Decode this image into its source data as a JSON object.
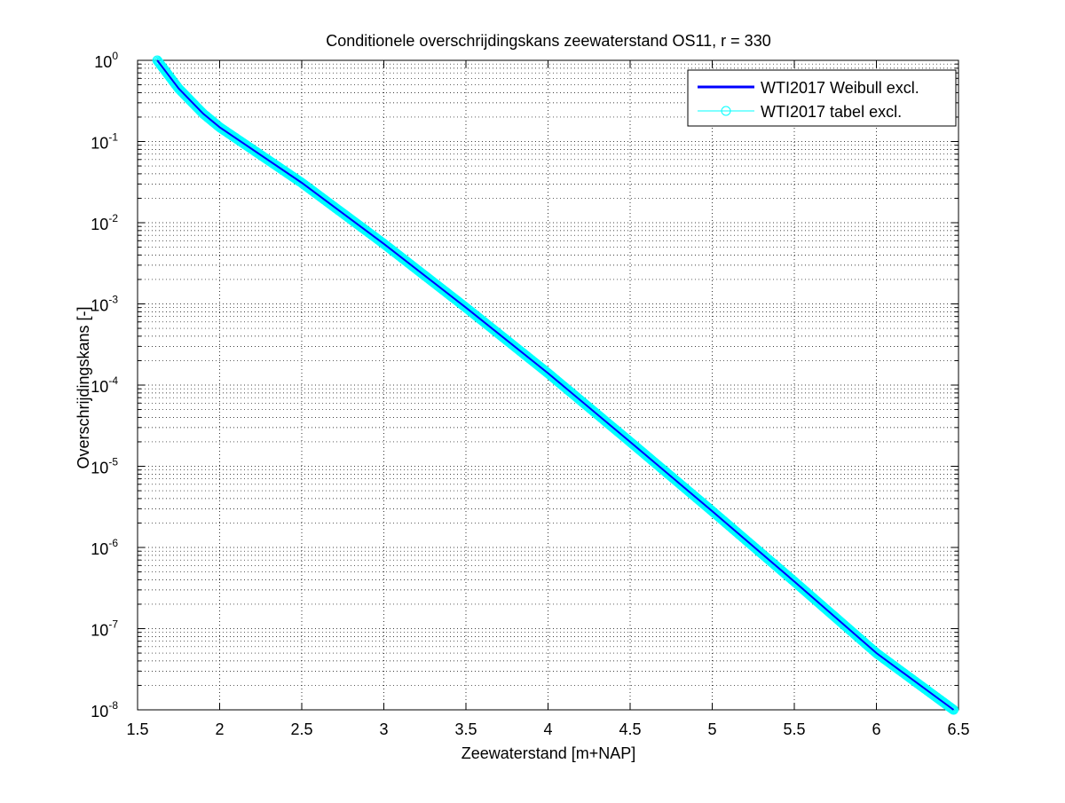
{
  "chart_data": {
    "type": "line",
    "title": "Conditionele overschrijdingskans zeewaterstand OS11, r = 330",
    "xlabel": "Zeewaterstand [m+NAP]",
    "ylabel": "Overschrijdingskans [-]",
    "xlim": [
      1.5,
      6.5
    ],
    "ylim": [
      1e-08,
      1
    ],
    "yscale": "log",
    "grid": true,
    "minor_grid": true,
    "legend_position": "top-right",
    "x_ticks": [
      "1.5",
      "2",
      "2.5",
      "3",
      "3.5",
      "4",
      "4.5",
      "5",
      "5.5",
      "6",
      "6.5"
    ],
    "y_ticks": [
      {
        "base": "10",
        "exp": "0"
      },
      {
        "base": "10",
        "exp": "-1"
      },
      {
        "base": "10",
        "exp": "-2"
      },
      {
        "base": "10",
        "exp": "-3"
      },
      {
        "base": "10",
        "exp": "-4"
      },
      {
        "base": "10",
        "exp": "-5"
      },
      {
        "base": "10",
        "exp": "-6"
      },
      {
        "base": "10",
        "exp": "-7"
      },
      {
        "base": "10",
        "exp": "-8"
      }
    ],
    "series": [
      {
        "name": "WTI2017 Weibull excl.",
        "color": "#0000ff",
        "marker": "none",
        "x": [
          1.62,
          1.75,
          1.9,
          2.0,
          2.5,
          3.0,
          3.5,
          4.0,
          4.5,
          5.0,
          5.5,
          6.0,
          6.47
        ],
        "y": [
          1.0,
          0.45,
          0.22,
          0.15,
          0.031,
          0.0055,
          0.0009,
          0.00014,
          2e-05,
          2.8e-06,
          3.8e-07,
          5e-08,
          1e-08
        ]
      },
      {
        "name": "WTI2017 tabel excl.",
        "color": "#00ffff",
        "marker": "circle",
        "x": [
          1.62,
          1.75,
          1.9,
          2.0,
          2.5,
          3.0,
          3.5,
          4.0,
          4.5,
          5.0,
          5.5,
          6.0,
          6.47
        ],
        "y": [
          1.0,
          0.45,
          0.22,
          0.15,
          0.031,
          0.0055,
          0.0009,
          0.00014,
          2e-05,
          2.8e-06,
          3.8e-07,
          5e-08,
          1e-08
        ]
      }
    ]
  }
}
